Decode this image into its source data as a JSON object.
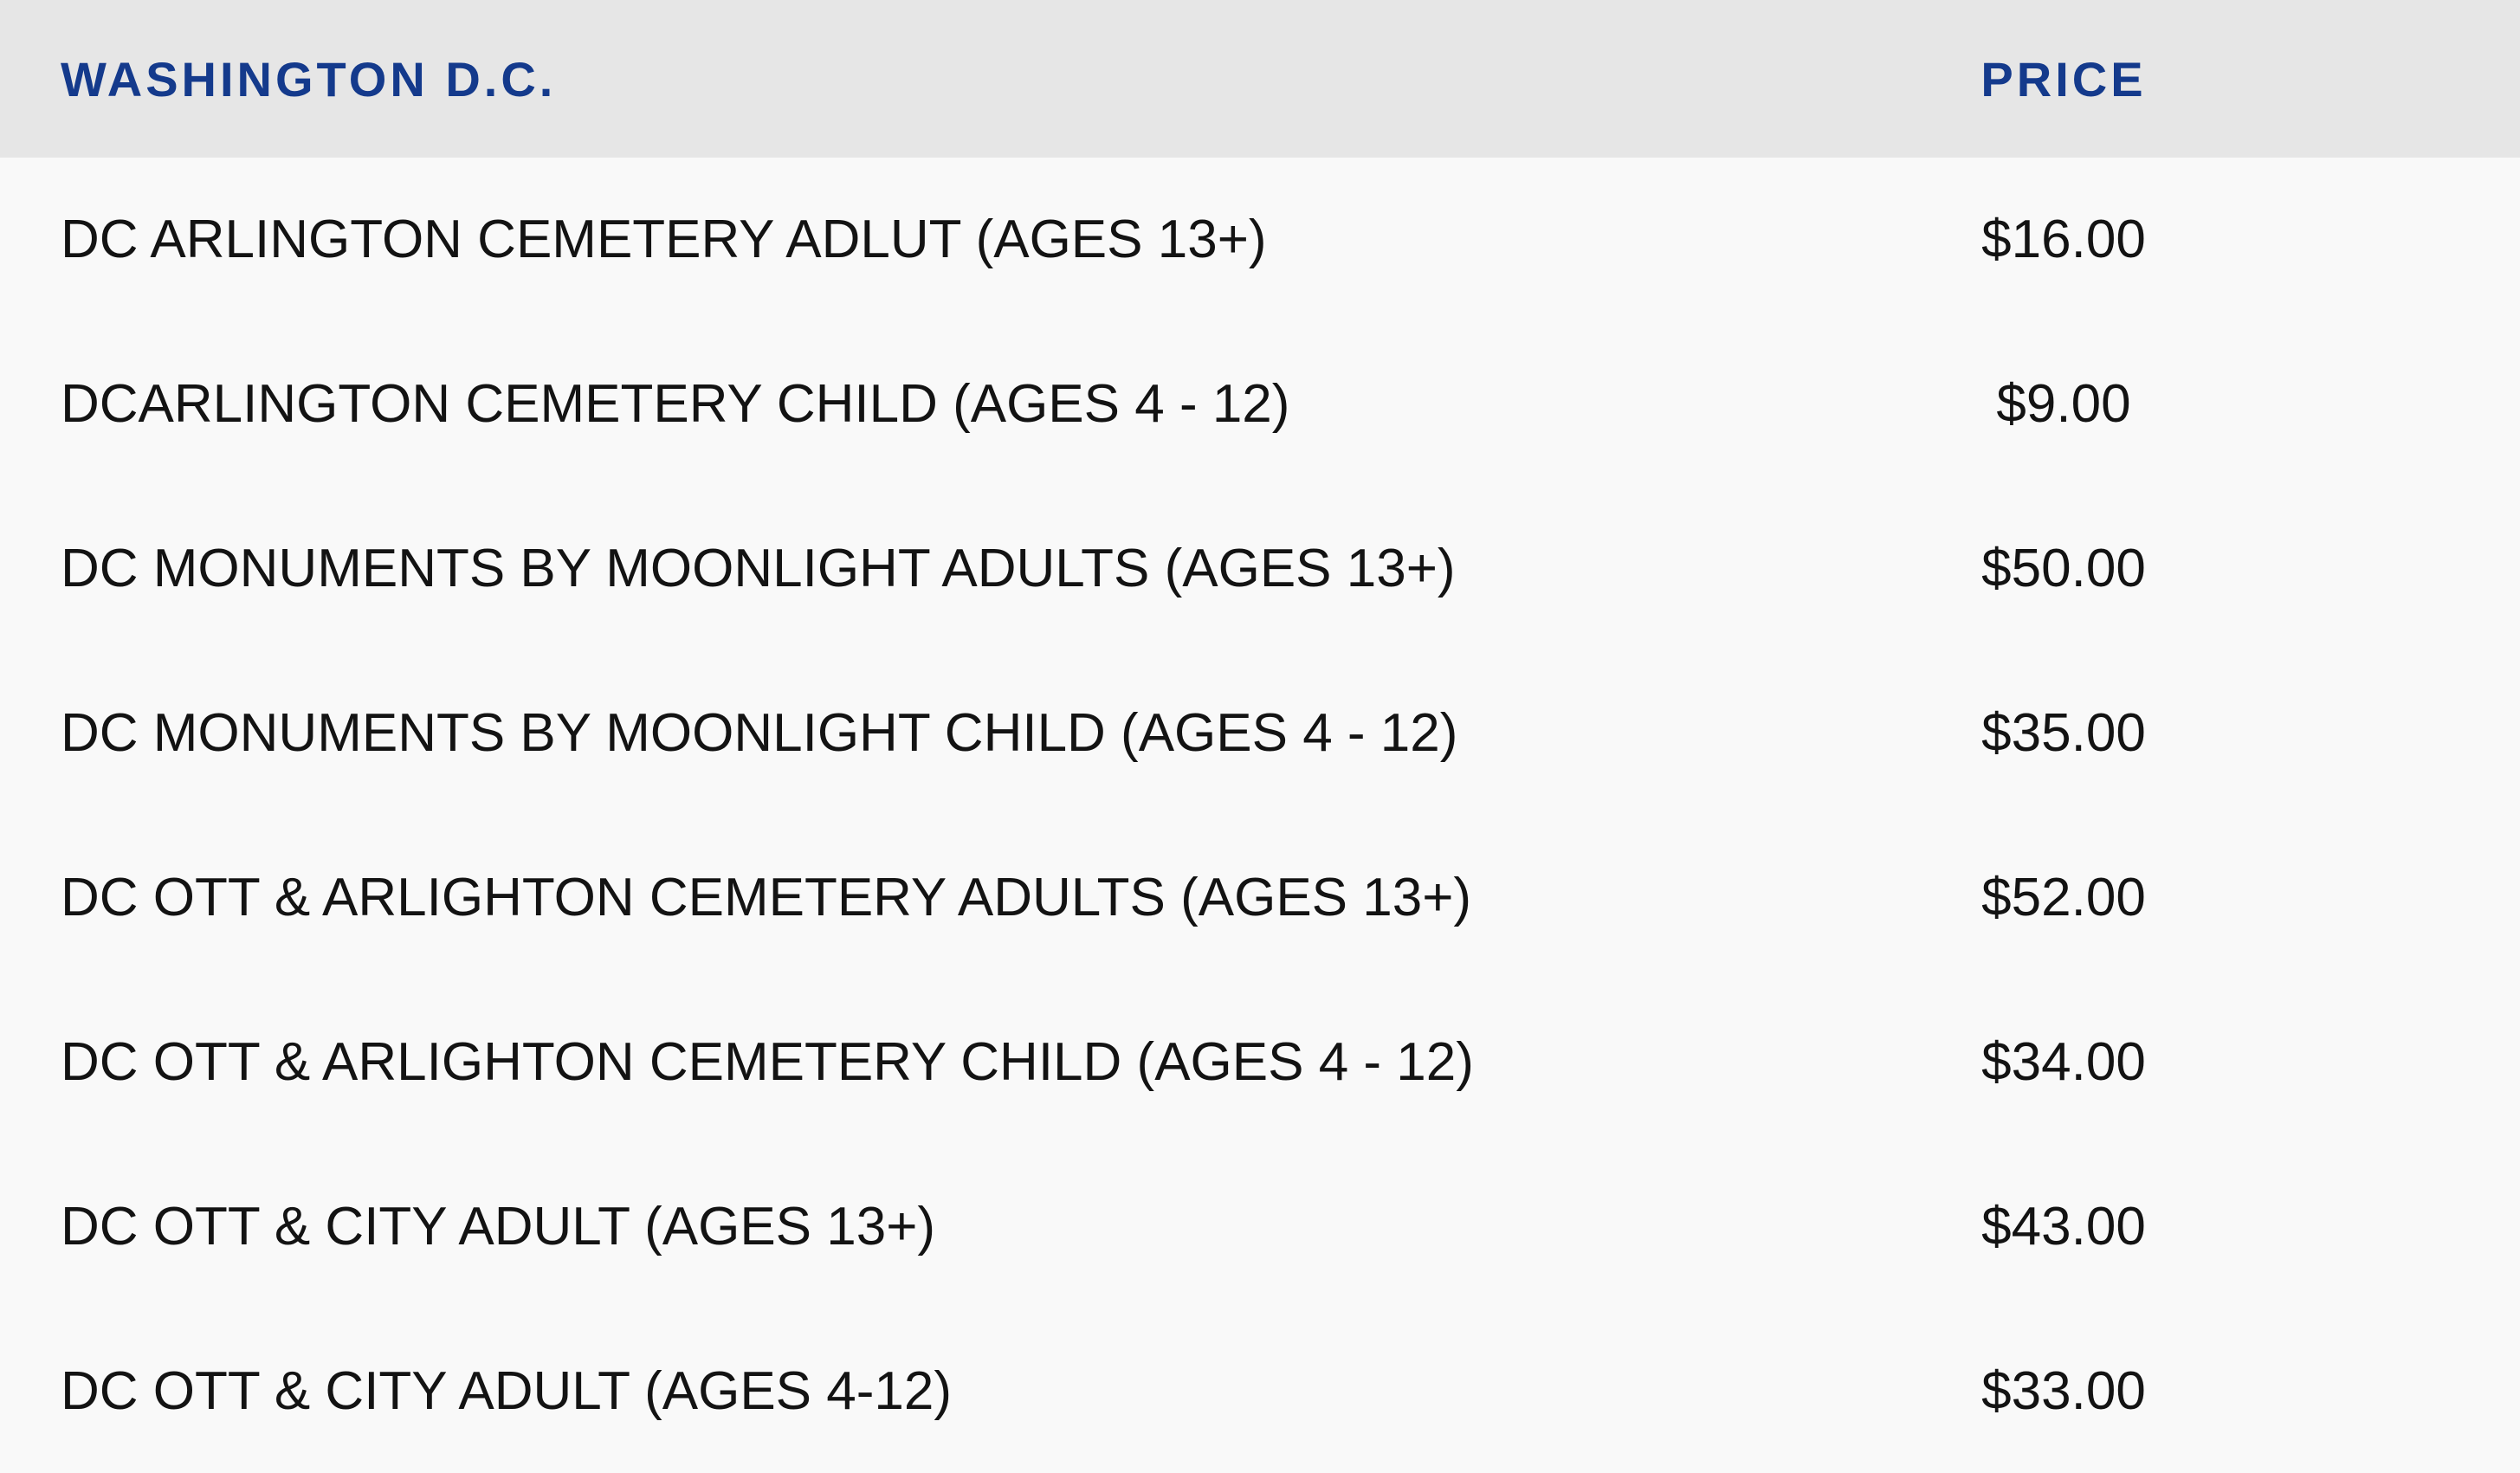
{
  "page": {
    "background_color": "#f9f9f9"
  },
  "table": {
    "header": {
      "background_color": "#e6e6e6",
      "text_color": "#143a8c"
    },
    "columns": [
      {
        "label": "WASHINGTON D.C."
      },
      {
        "label": "PRICE"
      }
    ],
    "rows": [
      {
        "name": "DC ARLINGTON CEMETERY ADLUT (AGES 13+)",
        "price": "$16.00"
      },
      {
        "name": "DCARLINGTON CEMETERY CHILD (AGES 4 - 12)",
        "price": "$9.00"
      },
      {
        "name": "DC MONUMENTS BY MOONLIGHT ADULTS (AGES 13+)",
        "price": "$50.00"
      },
      {
        "name": "DC MONUMENTS BY MOONLIGHT CHILD (AGES 4 - 12)",
        "price": "$35.00"
      },
      {
        "name": "DC OTT & ARLIGHTON CEMETERY ADULTS (AGES 13+)",
        "price": "$52.00"
      },
      {
        "name": "DC OTT & ARLIGHTON CEMETERY CHILD (AGES 4 - 12)",
        "price": "$34.00"
      },
      {
        "name": "DC OTT & CITY ADULT (AGES 13+)",
        "price": "$43.00"
      },
      {
        "name": "DC OTT & CITY ADULT (AGES 4-12)",
        "price": "$33.00"
      }
    ]
  }
}
